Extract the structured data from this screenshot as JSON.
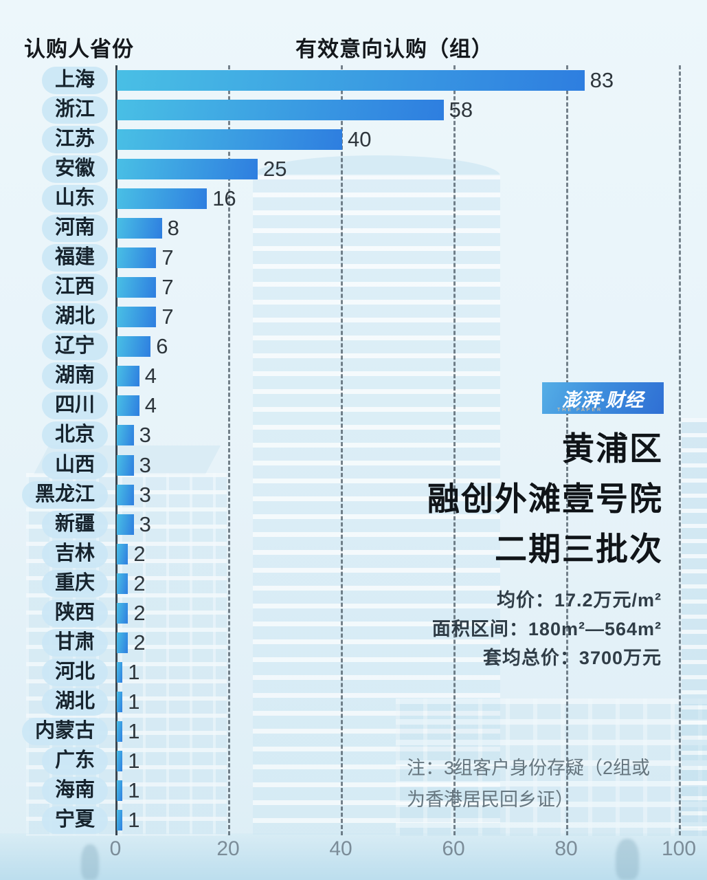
{
  "header": {
    "left_title": "认购人省份",
    "right_title": "有效意向认购（组）"
  },
  "chart_data": {
    "type": "bar",
    "orientation": "horizontal",
    "title": "有效意向认购（组）",
    "ylabel": "认购人省份",
    "categories": [
      "上海",
      "浙江",
      "江苏",
      "安徽",
      "山东",
      "河南",
      "福建",
      "江西",
      "湖北",
      "辽宁",
      "湖南",
      "四川",
      "北京",
      "山西",
      "黑龙江",
      "新疆",
      "吉林",
      "重庆",
      "陕西",
      "甘肃",
      "河北",
      "湖北",
      "内蒙古",
      "广东",
      "海南",
      "宁夏"
    ],
    "values": [
      83,
      58,
      40,
      25,
      16,
      8,
      7,
      7,
      7,
      6,
      4,
      4,
      3,
      3,
      3,
      3,
      2,
      2,
      2,
      2,
      1,
      1,
      1,
      1,
      1,
      1
    ],
    "xticks": [
      0,
      20,
      40,
      60,
      80,
      100
    ],
    "xlim": [
      0,
      100
    ],
    "grid": "dashed-vertical",
    "legend": "none",
    "bar_gradient": [
      "#49bfe5",
      "#2e7ee0"
    ]
  },
  "logo": {
    "main": "澎湃·财经",
    "sub": "THE PAPER"
  },
  "info_panel": {
    "title_lines": [
      "黄浦区",
      "融创外滩壹号院",
      "二期三批次"
    ],
    "detail_lines": [
      "均价：17.2万元/m²",
      "面积区间：180m²—564m²",
      "套均总价：3700万元"
    ]
  },
  "note": "注：3组客户身份存疑（2组或为香港居民回乡证）",
  "colors": {
    "background": "#e9f5fa",
    "pill_bg": "#cbe7f6",
    "bar_start": "#49bfe5",
    "bar_end": "#2e7ee0",
    "axis": "#39454f",
    "grid": "#46545f",
    "tick_label": "#7b8c98",
    "title_text": "#101418",
    "note_text": "#66767f",
    "logo_start": "#55aee6",
    "logo_end": "#2f6fd4"
  }
}
